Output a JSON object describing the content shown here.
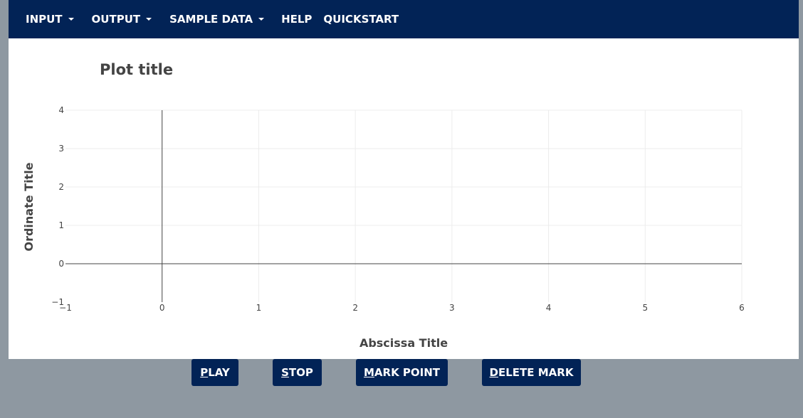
{
  "theme": {
    "nav_bg": "#022356",
    "button_bg": "#022356",
    "page_bg": "#8e98a1"
  },
  "navbar": {
    "items": [
      {
        "label": "INPUT",
        "dropdown": true
      },
      {
        "label": "OUTPUT",
        "dropdown": true
      },
      {
        "label": "SAMPLE DATA",
        "dropdown": true
      },
      {
        "label": "HELP",
        "dropdown": false
      },
      {
        "label": "QUICKSTART",
        "dropdown": false
      }
    ]
  },
  "chart_data": {
    "type": "scatter",
    "title": "Plot title",
    "xlabel": "Abscissa Title",
    "ylabel": "Ordinate Title",
    "xlim": [
      -1,
      6
    ],
    "ylim": [
      -1,
      4
    ],
    "x_ticks": [
      "−1",
      "0",
      "1",
      "2",
      "3",
      "4",
      "5",
      "6"
    ],
    "y_ticks": [
      "−1",
      "0",
      "1",
      "2",
      "3",
      "4"
    ],
    "grid": true,
    "series": []
  },
  "controls": {
    "play": {
      "accel": "P",
      "rest": "LAY"
    },
    "stop": {
      "accel": "S",
      "rest": "TOP"
    },
    "mark_point": {
      "accel": "M",
      "rest": "ARK POINT"
    },
    "delete_mark": {
      "accel": "D",
      "rest": "ELETE MARK"
    }
  }
}
